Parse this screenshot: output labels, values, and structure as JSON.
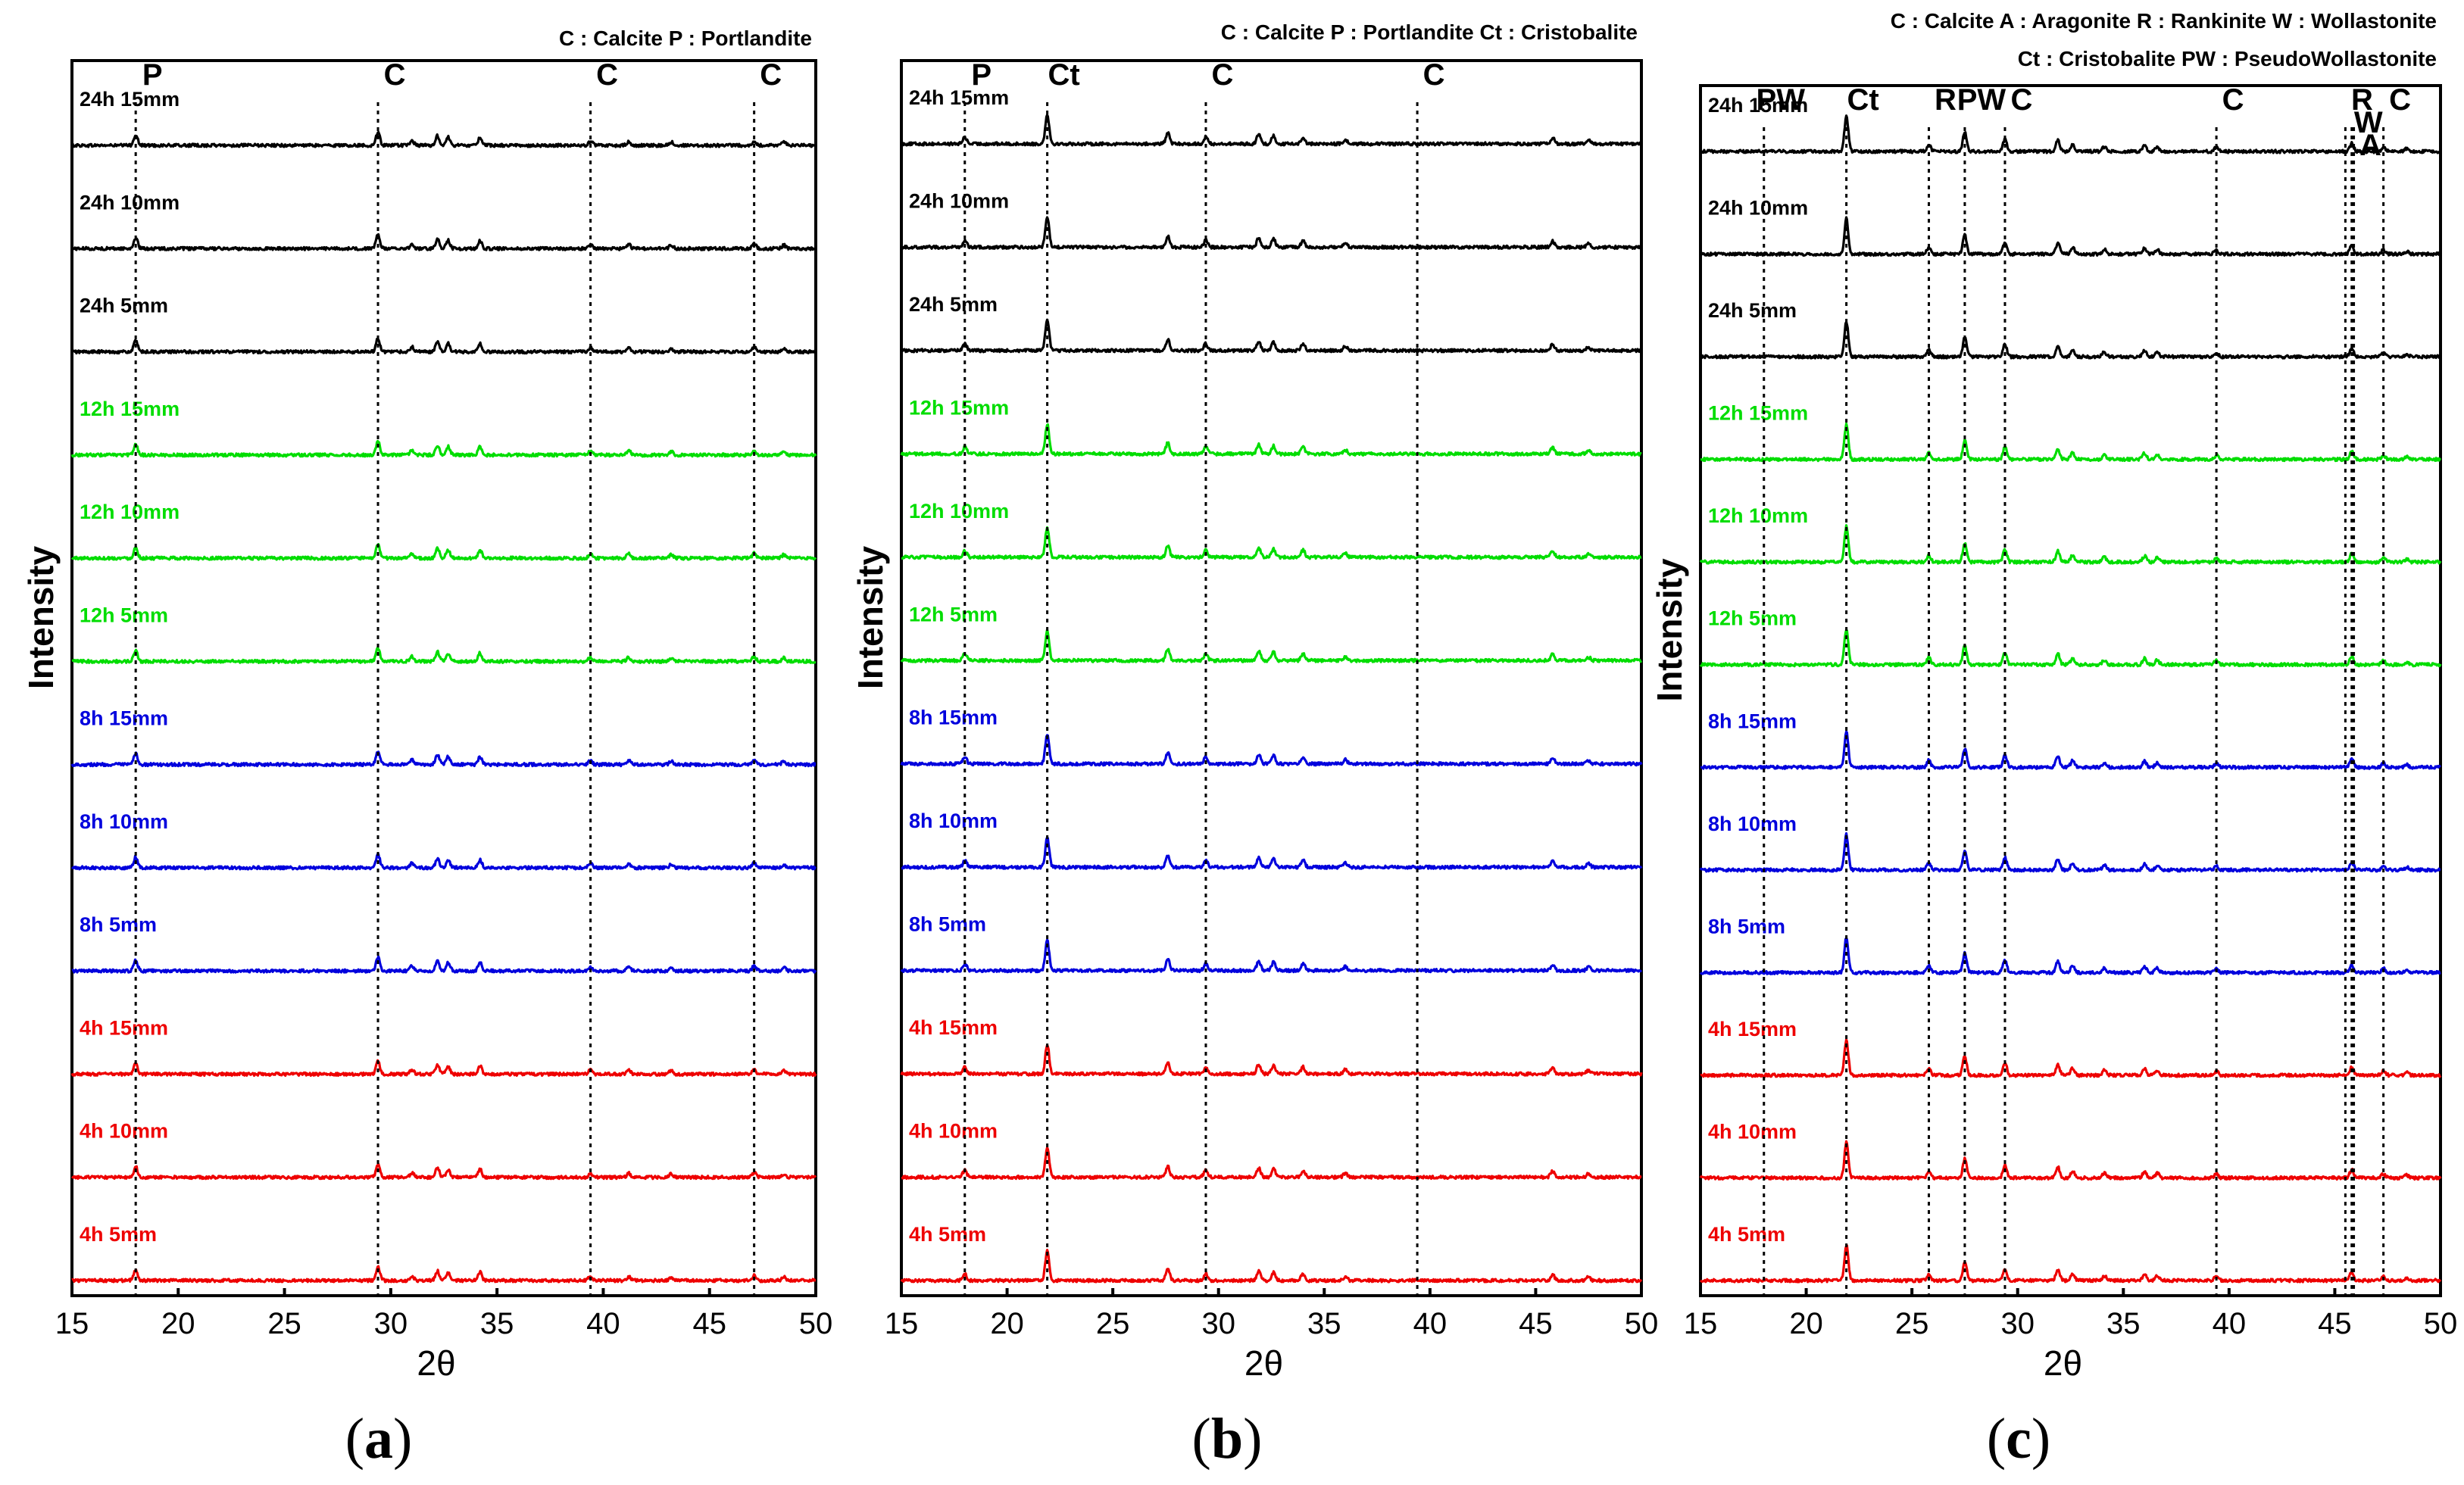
{
  "figure": {
    "panel_labels": [
      {
        "open": "(",
        "letter": "a",
        "close": ")"
      },
      {
        "open": "(",
        "letter": "b",
        "close": ")"
      },
      {
        "open": "(",
        "letter": "c",
        "close": ")"
      }
    ]
  },
  "colors": {
    "24h": "#000000",
    "12h": "#00dd00",
    "8h": "#0000dd",
    "4h": "#ee0000"
  },
  "chart_data": [
    {
      "type": "line",
      "xlabel": "2θ",
      "ylabel": "Intensity",
      "xlim": [
        15,
        50
      ],
      "xticks": [
        15,
        20,
        25,
        30,
        35,
        40,
        45,
        50
      ],
      "legend": [
        "C : Calcite   P : Portlandite"
      ],
      "phase_markers": [
        {
          "label": "P",
          "x": 18.0
        },
        {
          "label": "C",
          "x": 29.4
        },
        {
          "label": "C",
          "x": 39.4
        },
        {
          "label": "C",
          "x": 47.1
        }
      ],
      "peaks": [
        {
          "x": 18.0,
          "h": 0.8
        },
        {
          "x": 29.4,
          "h": 1.0
        },
        {
          "x": 31.0,
          "h": 0.35
        },
        {
          "x": 32.2,
          "h": 0.7
        },
        {
          "x": 32.7,
          "h": 0.6
        },
        {
          "x": 34.2,
          "h": 0.6
        },
        {
          "x": 39.4,
          "h": 0.3
        },
        {
          "x": 41.2,
          "h": 0.3
        },
        {
          "x": 43.2,
          "h": 0.25
        },
        {
          "x": 47.1,
          "h": 0.35
        },
        {
          "x": 48.5,
          "h": 0.25
        }
      ],
      "series": [
        {
          "name": "24h 15mm",
          "color": "#000000"
        },
        {
          "name": "24h 10mm",
          "color": "#000000"
        },
        {
          "name": "24h 5mm",
          "color": "#000000"
        },
        {
          "name": "12h 15mm",
          "color": "#00dd00"
        },
        {
          "name": "12h 10mm",
          "color": "#00dd00"
        },
        {
          "name": "12h 5mm",
          "color": "#00dd00"
        },
        {
          "name": "8h 15mm",
          "color": "#0000dd"
        },
        {
          "name": "8h 10mm",
          "color": "#0000dd"
        },
        {
          "name": "8h 5mm",
          "color": "#0000dd"
        },
        {
          "name": "4h 15mm",
          "color": "#ee0000"
        },
        {
          "name": "4h 10mm",
          "color": "#ee0000"
        },
        {
          "name": "4h 5mm",
          "color": "#ee0000"
        }
      ]
    },
    {
      "type": "line",
      "xlabel": "2θ",
      "ylabel": "Intensity",
      "xlim": [
        15,
        50
      ],
      "xticks": [
        15,
        20,
        25,
        30,
        35,
        40,
        45,
        50
      ],
      "legend": [
        "C : Calcite   P : Portlandite   Ct : Cristobalite"
      ],
      "phase_markers": [
        {
          "label": "P",
          "x": 18.0
        },
        {
          "label": "Ct",
          "x": 21.9
        },
        {
          "label": "C",
          "x": 29.4
        },
        {
          "label": "C",
          "x": 39.4
        }
      ],
      "peaks": [
        {
          "x": 18.0,
          "h": 0.5
        },
        {
          "x": 21.9,
          "h": 2.2
        },
        {
          "x": 27.6,
          "h": 0.8
        },
        {
          "x": 29.4,
          "h": 0.5
        },
        {
          "x": 31.9,
          "h": 0.7
        },
        {
          "x": 32.6,
          "h": 0.6
        },
        {
          "x": 34.0,
          "h": 0.5
        },
        {
          "x": 36.0,
          "h": 0.3
        },
        {
          "x": 45.8,
          "h": 0.45
        },
        {
          "x": 47.5,
          "h": 0.25
        }
      ],
      "series": [
        {
          "name": "24h 15mm",
          "color": "#000000"
        },
        {
          "name": "24h 10mm",
          "color": "#000000"
        },
        {
          "name": "24h 5mm",
          "color": "#000000"
        },
        {
          "name": "12h 15mm",
          "color": "#00dd00"
        },
        {
          "name": "12h 10mm",
          "color": "#00dd00"
        },
        {
          "name": "12h 5mm",
          "color": "#00dd00"
        },
        {
          "name": "8h 15mm",
          "color": "#0000dd"
        },
        {
          "name": "8h 10mm",
          "color": "#0000dd"
        },
        {
          "name": "8h 5mm",
          "color": "#0000dd"
        },
        {
          "name": "4h 15mm",
          "color": "#ee0000"
        },
        {
          "name": "4h 10mm",
          "color": "#ee0000"
        },
        {
          "name": "4h 5mm",
          "color": "#ee0000"
        }
      ]
    },
    {
      "type": "line",
      "xlabel": "2θ",
      "ylabel": "Intensity",
      "xlim": [
        15,
        50
      ],
      "xticks": [
        15,
        20,
        25,
        30,
        35,
        40,
        45,
        50
      ],
      "legend": [
        "C : Calcite   A : Aragonite   R : Rankinite W : Wollastonite",
        "Ct : Cristobalite  PW : PseudoWollastonite"
      ],
      "phase_markers": [
        {
          "label": "PW",
          "x": 18.0
        },
        {
          "label": "Ct",
          "x": 21.9
        },
        {
          "label": "R",
          "x": 25.8
        },
        {
          "label": "PW",
          "x": 27.5
        },
        {
          "label": "C",
          "x": 29.4
        },
        {
          "label": "C",
          "x": 39.4
        },
        {
          "label": "R",
          "x": 45.5
        },
        {
          "label": "W",
          "x": 45.8
        },
        {
          "label": "A",
          "x": 45.9
        },
        {
          "label": "C",
          "x": 47.3
        }
      ],
      "peaks": [
        {
          "x": 21.9,
          "h": 2.6
        },
        {
          "x": 25.8,
          "h": 0.5
        },
        {
          "x": 27.5,
          "h": 1.4
        },
        {
          "x": 29.4,
          "h": 0.9
        },
        {
          "x": 31.9,
          "h": 0.8
        },
        {
          "x": 32.6,
          "h": 0.5
        },
        {
          "x": 34.1,
          "h": 0.35
        },
        {
          "x": 36.0,
          "h": 0.45
        },
        {
          "x": 36.6,
          "h": 0.35
        },
        {
          "x": 39.4,
          "h": 0.3
        },
        {
          "x": 45.8,
          "h": 0.6
        },
        {
          "x": 47.3,
          "h": 0.3
        },
        {
          "x": 48.4,
          "h": 0.2
        }
      ],
      "series": [
        {
          "name": "24h 15mm",
          "color": "#000000"
        },
        {
          "name": "24h 10mm",
          "color": "#000000"
        },
        {
          "name": "24h 5mm",
          "color": "#000000"
        },
        {
          "name": "12h 15mm",
          "color": "#00dd00"
        },
        {
          "name": "12h 10mm",
          "color": "#00dd00"
        },
        {
          "name": "12h 5mm",
          "color": "#00dd00"
        },
        {
          "name": "8h 15mm",
          "color": "#0000dd"
        },
        {
          "name": "8h 10mm",
          "color": "#0000dd"
        },
        {
          "name": "8h 5mm",
          "color": "#0000dd"
        },
        {
          "name": "4h 15mm",
          "color": "#ee0000"
        },
        {
          "name": "4h 10mm",
          "color": "#ee0000"
        },
        {
          "name": "4h 5mm",
          "color": "#ee0000"
        }
      ]
    }
  ]
}
